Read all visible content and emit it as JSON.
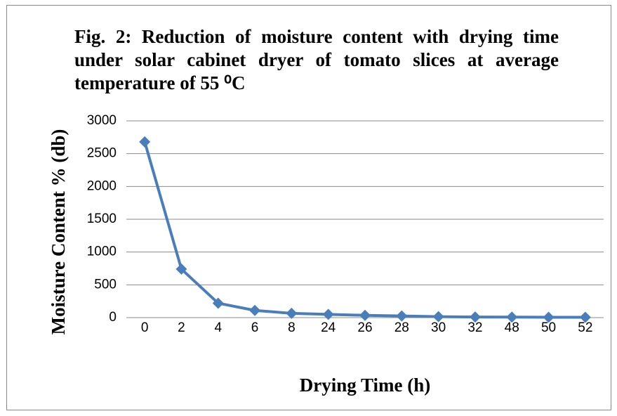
{
  "chart_data": {
    "type": "line",
    "title": "Fig. 2: Reduction of moisture content with drying time under solar cabinet dryer of tomato slices at average temperature of 55 ⁰C",
    "xlabel": "Drying Time (h)",
    "ylabel": "Moisture Content % (db)",
    "categories": [
      "0",
      "2",
      "4",
      "6",
      "8",
      "24",
      "26",
      "28",
      "30",
      "32",
      "48",
      "50",
      "52"
    ],
    "values": [
      2680,
      740,
      220,
      110,
      65,
      50,
      35,
      25,
      15,
      10,
      8,
      6,
      5
    ],
    "color": "#4a7ebb",
    "ylim": [
      0,
      3000
    ],
    "yticks": [
      0,
      500,
      1000,
      1500,
      2000,
      2500,
      3000
    ],
    "grid": true
  }
}
